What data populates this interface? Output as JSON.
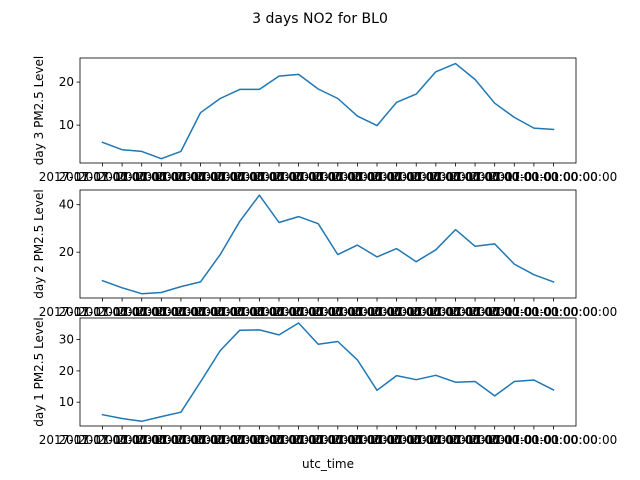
{
  "figure": {
    "title": "3 days NO2 for BL0"
  },
  "chart_data": [
    {
      "type": "line",
      "ylabel": "day  3 PM2.5 Level",
      "xlabel": "",
      "ylim": [
        1.2,
        25.6
      ],
      "yticks": [
        10,
        20
      ],
      "x_tick_label": "2017-01-01 00:00:00",
      "line_color": "#1f77b4",
      "values": [
        6.0,
        4.3,
        3.9,
        2.2,
        3.9,
        12.9,
        16.2,
        18.3,
        18.3,
        21.4,
        21.8,
        18.4,
        16.2,
        12.1,
        9.9,
        15.3,
        17.2,
        22.4,
        24.3,
        20.6,
        15.1,
        11.8,
        9.3,
        9.0
      ]
    },
    {
      "type": "line",
      "ylabel": "day 2 PM2.5 Level",
      "xlabel": "",
      "ylim": [
        0.7,
        46.2
      ],
      "yticks": [
        20,
        40
      ],
      "x_tick_label": "2017-01-01 00:00:00",
      "line_color": "#1f77b4",
      "values": [
        8.0,
        5.0,
        2.5,
        3.0,
        5.5,
        7.5,
        19.0,
        33.0,
        44.0,
        32.5,
        35.0,
        32.0,
        19.0,
        23.0,
        18.0,
        21.5,
        16.0,
        21.0,
        29.5,
        22.5,
        23.5,
        15.0,
        10.5,
        7.5
      ]
    },
    {
      "type": "line",
      "ylabel": "day 1 PM2.5 Level",
      "xlabel": "utc_time",
      "ylim": [
        2.4,
        36.9
      ],
      "yticks": [
        10,
        20,
        30
      ],
      "x_tick_label": "2017-01-01 00:00:00",
      "line_color": "#1f77b4",
      "values": [
        6.0,
        4.8,
        3.9,
        5.4,
        6.8,
        16.5,
        26.5,
        33.0,
        33.1,
        31.5,
        35.3,
        28.5,
        29.4,
        23.5,
        13.8,
        18.5,
        17.2,
        18.6,
        16.4,
        16.6,
        12.0,
        16.6,
        17.1,
        13.9
      ]
    }
  ]
}
